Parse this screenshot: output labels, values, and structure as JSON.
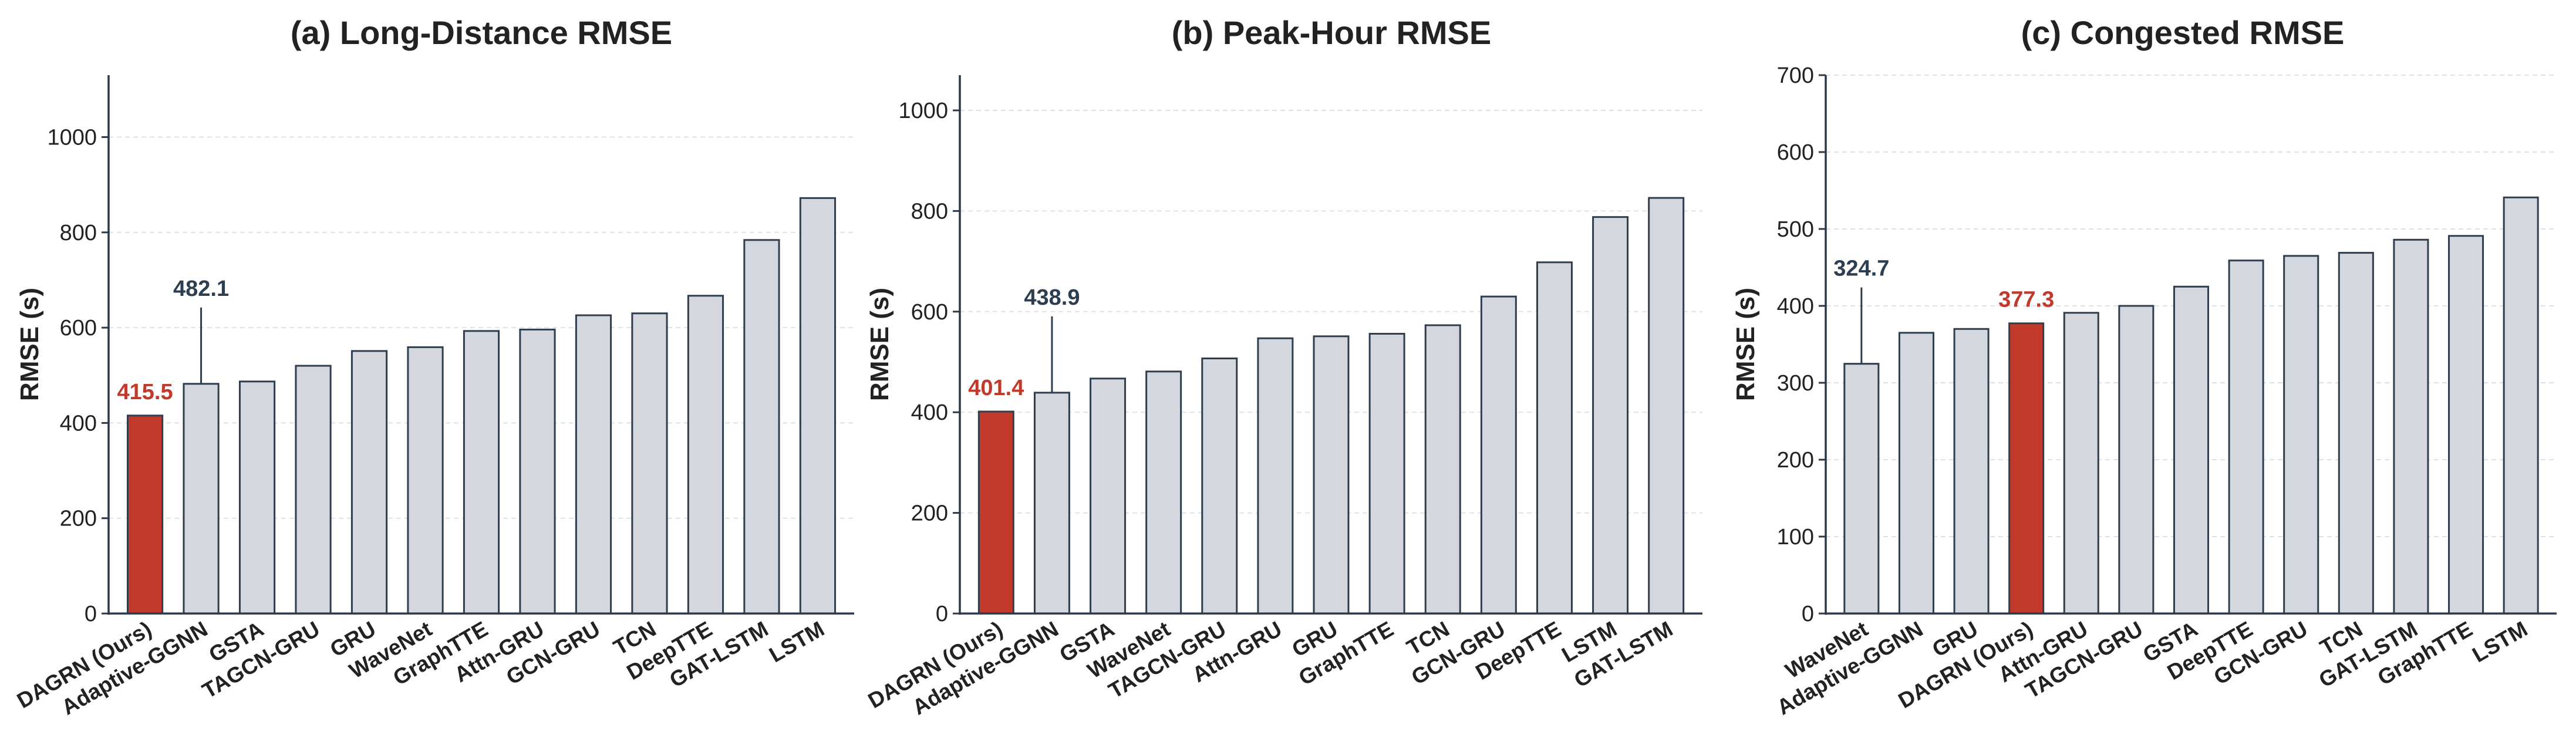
{
  "colors": {
    "highlight": "#c0392b",
    "bar": "#d4d8de",
    "edge": "#2f3e4e",
    "best_annotation": "#2c3e50"
  },
  "chart_data": [
    {
      "type": "bar",
      "title": "(a) Long-Distance RMSE",
      "ylabel": "RMSE (s)",
      "xlabel": "",
      "ylim": [
        0,
        1130
      ],
      "yticks": [
        0,
        200,
        400,
        600,
        800,
        1000
      ],
      "grid": true,
      "categories": [
        "DAGRN (Ours)",
        "Adaptive-GGNN",
        "GSTA",
        "TAGCN-GRU",
        "GRU",
        "WaveNet",
        "GraphTTE",
        "Attn-GRU",
        "GCN-GRU",
        "TCN",
        "DeepTTE",
        "GAT-LSTM",
        "LSTM"
      ],
      "values": [
        415.5,
        482.1,
        487,
        520,
        551,
        559,
        593,
        596,
        626,
        630,
        667,
        784,
        872
      ],
      "highlight_index": 0,
      "annotations": [
        {
          "category": "DAGRN (Ours)",
          "text": "415.5",
          "style": "highlight"
        },
        {
          "category": "Adaptive-GGNN",
          "text": "482.1",
          "style": "best",
          "leader": true
        }
      ]
    },
    {
      "type": "bar",
      "title": "(b) Peak-Hour RMSE",
      "ylabel": "RMSE (s)",
      "xlabel": "",
      "ylim": [
        0,
        1070
      ],
      "yticks": [
        0,
        200,
        400,
        600,
        800,
        1000
      ],
      "grid": true,
      "categories": [
        "DAGRN (Ours)",
        "Adaptive-GGNN",
        "GSTA",
        "WaveNet",
        "TAGCN-GRU",
        "Attn-GRU",
        "GRU",
        "GraphTTE",
        "TCN",
        "GCN-GRU",
        "DeepTTE",
        "LSTM",
        "GAT-LSTM"
      ],
      "values": [
        401.4,
        438.9,
        467,
        481,
        507,
        547,
        551,
        556,
        573,
        630,
        698,
        788,
        826
      ],
      "highlight_index": 0,
      "annotations": [
        {
          "category": "DAGRN (Ours)",
          "text": "401.4",
          "style": "highlight"
        },
        {
          "category": "Adaptive-GGNN",
          "text": "438.9",
          "style": "best",
          "leader": true
        }
      ]
    },
    {
      "type": "bar",
      "title": "(c) Congested RMSE",
      "ylabel": "RMSE (s)",
      "xlabel": "",
      "ylim": [
        0,
        700
      ],
      "yticks": [
        0,
        100,
        200,
        300,
        400,
        500,
        600,
        700
      ],
      "grid": true,
      "categories": [
        "WaveNet",
        "Adaptive-GGNN",
        "GRU",
        "DAGRN (Ours)",
        "Attn-GRU",
        "TAGCN-GRU",
        "GSTA",
        "DeepTTE",
        "GCN-GRU",
        "TCN",
        "GAT-LSTM",
        "GraphTTE",
        "LSTM"
      ],
      "values": [
        324.7,
        365,
        370,
        377.3,
        391,
        400,
        425,
        459,
        465,
        469,
        486,
        491,
        541
      ],
      "highlight_index": 3,
      "annotations": [
        {
          "category": "WaveNet",
          "text": "324.7",
          "style": "best",
          "leader": true
        },
        {
          "category": "DAGRN (Ours)",
          "text": "377.3",
          "style": "highlight"
        }
      ]
    }
  ]
}
